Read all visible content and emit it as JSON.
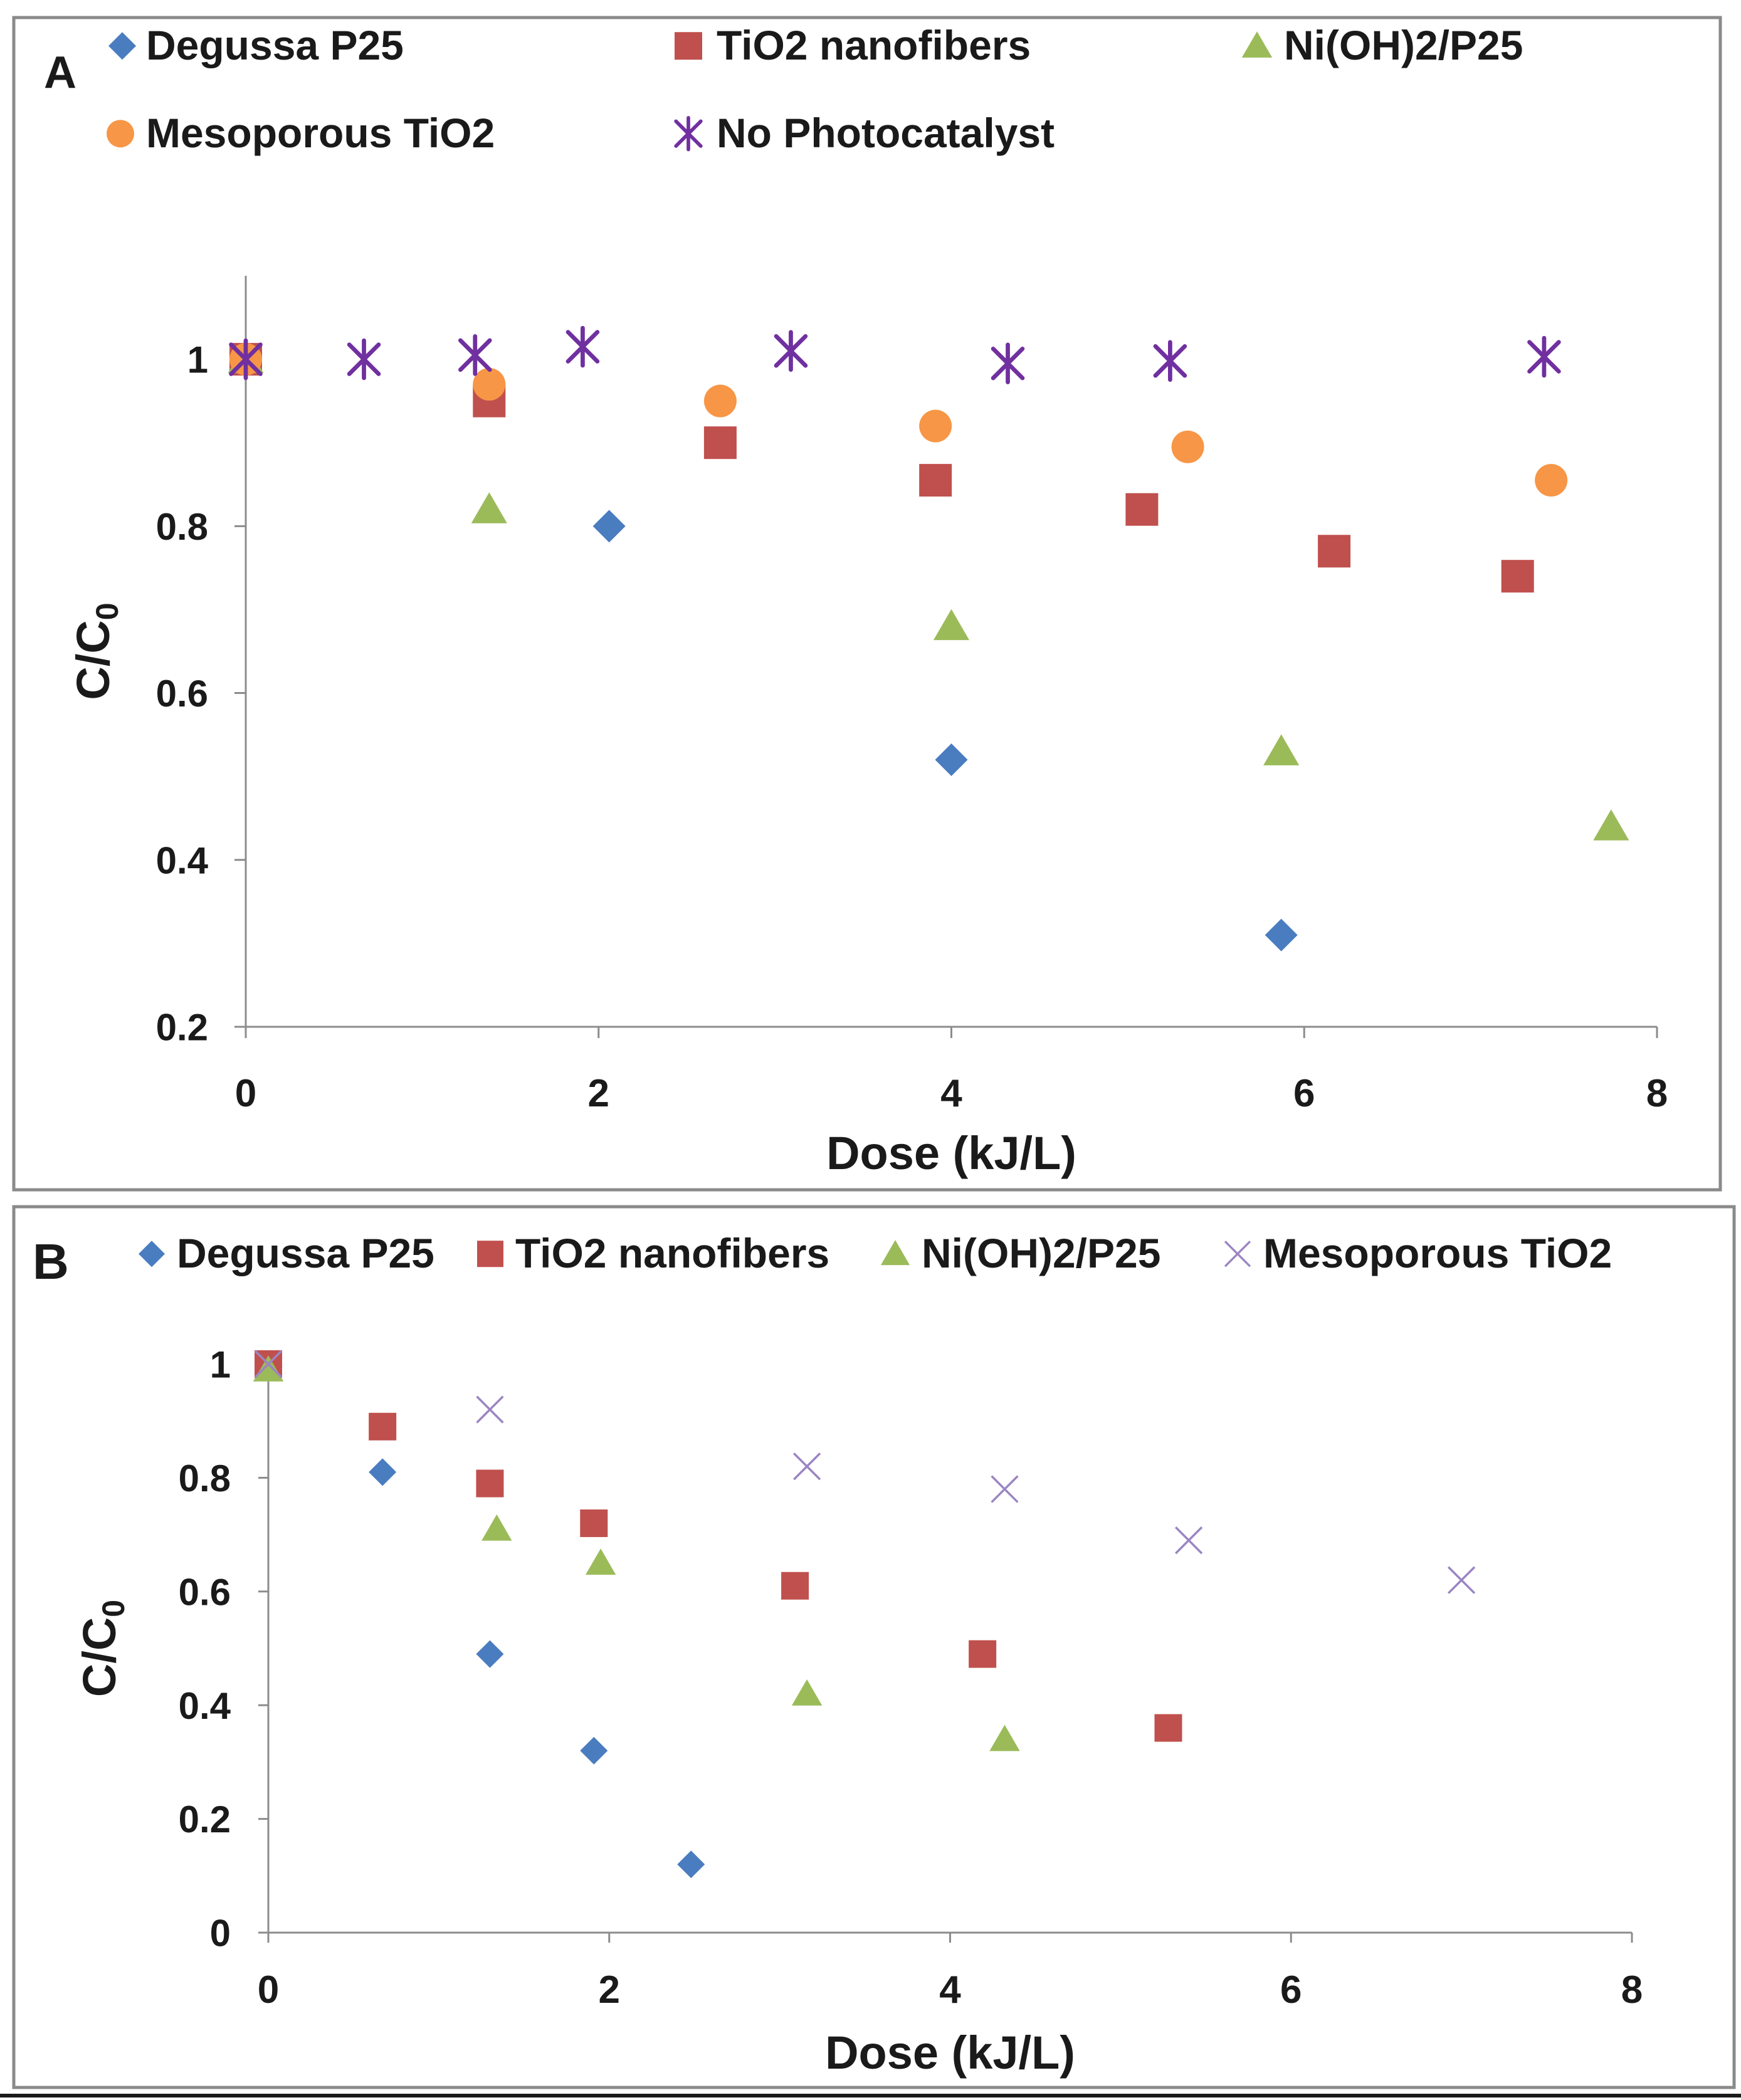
{
  "colors": {
    "blue": "#4a7cc0",
    "red": "#c0504d",
    "green": "#9bbb59",
    "orange": "#f79646",
    "purple": "#7030a0",
    "lavender": "#9b85c4",
    "axis": "#8c8c8c",
    "frame": "#8a8a8a"
  },
  "chart_data": [
    {
      "panel_label": "A",
      "type": "scatter",
      "title": "",
      "xlabel": "Dose (kJ/L)",
      "ylabel": "C/C",
      "ylabel_sub": "0",
      "xlim": [
        0,
        8
      ],
      "ylim": [
        0.2,
        1.1
      ],
      "xticks": [
        0,
        2,
        4,
        6,
        8
      ],
      "xtick_labels": [
        "0",
        "2",
        "4",
        "6",
        "8"
      ],
      "yticks": [
        0.2,
        0.4,
        0.6,
        0.8,
        1
      ],
      "ytick_labels": [
        "0.2",
        "0.4",
        "0.6",
        "0.8",
        "1"
      ],
      "grid": false,
      "legend_position": "top",
      "series": [
        {
          "name": "Degussa P25",
          "marker": "diamond",
          "color": "#4a7cc0",
          "x": [
            0,
            2.06,
            4.0,
            5.87
          ],
          "y": [
            1.0,
            0.8,
            0.52,
            0.31
          ]
        },
        {
          "name": "TiO2 nanofibers",
          "marker": "square",
          "color": "#c0504d",
          "x": [
            0,
            1.38,
            2.69,
            3.91,
            5.08,
            6.17,
            7.21
          ],
          "y": [
            1.0,
            0.95,
            0.9,
            0.855,
            0.82,
            0.77,
            0.74
          ]
        },
        {
          "name": "Ni(OH)2/P25",
          "marker": "triangle",
          "color": "#9bbb59",
          "x": [
            0,
            1.38,
            4.0,
            5.87,
            7.74
          ],
          "y": [
            1.0,
            0.82,
            0.68,
            0.53,
            0.44
          ]
        },
        {
          "name": "Mesoporous TiO2",
          "marker": "circle",
          "color": "#f79646",
          "x": [
            0,
            1.38,
            2.69,
            3.91,
            5.34,
            7.4
          ],
          "y": [
            1.0,
            0.97,
            0.95,
            0.92,
            0.895,
            0.855
          ]
        },
        {
          "name": "No Photocatalyst",
          "marker": "asterisk",
          "color": "#7030a0",
          "x": [
            0,
            0.67,
            1.3,
            1.91,
            3.09,
            4.32,
            5.24,
            7.36
          ],
          "y": [
            1.0,
            1.0,
            1.005,
            1.015,
            1.01,
            0.995,
            0.998,
            1.003
          ]
        }
      ]
    },
    {
      "panel_label": "B",
      "type": "scatter",
      "title": "",
      "xlabel": "Dose (kJ/L)",
      "ylabel": "C/C",
      "ylabel_sub": "0",
      "xlim": [
        0,
        8
      ],
      "ylim": [
        0,
        1
      ],
      "xticks": [
        0,
        2,
        4,
        6,
        8
      ],
      "xtick_labels": [
        "0",
        "2",
        "4",
        "6",
        "8"
      ],
      "yticks": [
        0,
        0.2,
        0.4,
        0.6,
        0.8,
        1
      ],
      "ytick_labels": [
        "0",
        "0.2",
        "0.4",
        "0.6",
        "0.8",
        "1"
      ],
      "grid": false,
      "legend_position": "top",
      "series": [
        {
          "name": "Degussa P25",
          "marker": "diamond",
          "color": "#4a7cc0",
          "x": [
            0,
            0.67,
            1.3,
            1.91,
            2.48
          ],
          "y": [
            1.0,
            0.81,
            0.49,
            0.32,
            0.12
          ]
        },
        {
          "name": "TiO2 nanofibers",
          "marker": "square",
          "color": "#c0504d",
          "x": [
            0,
            0.67,
            1.3,
            1.91,
            3.09,
            4.19,
            5.28
          ],
          "y": [
            1.0,
            0.89,
            0.79,
            0.72,
            0.61,
            0.49,
            0.36
          ]
        },
        {
          "name": "Ni(OH)2/P25",
          "marker": "triangle",
          "color": "#9bbb59",
          "x": [
            0,
            1.34,
            1.95,
            3.16,
            4.32
          ],
          "y": [
            0.99,
            0.71,
            0.65,
            0.42,
            0.34
          ]
        },
        {
          "name": "Mesoporous TiO2",
          "marker": "cross",
          "color": "#9b85c4",
          "x": [
            0,
            1.3,
            3.16,
            4.32,
            5.4,
            7.0
          ],
          "y": [
            1.0,
            0.92,
            0.82,
            0.78,
            0.69,
            0.62
          ]
        }
      ]
    }
  ]
}
